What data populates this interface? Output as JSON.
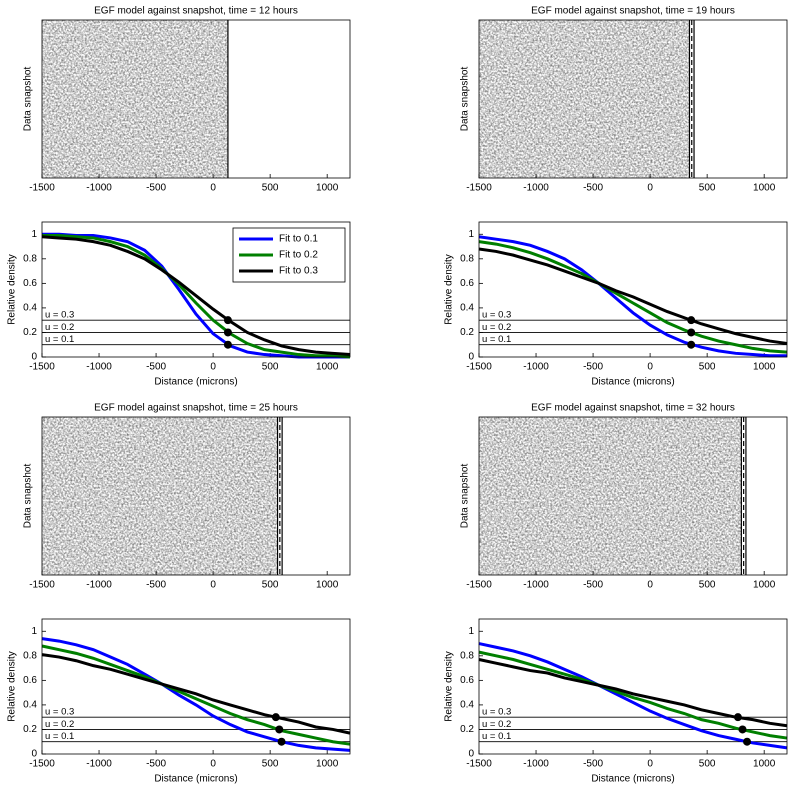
{
  "chart_data": [
    {
      "type": "image",
      "title": "EGF model against snapshot, time = 12 hours",
      "ylabel": "Data snapshot",
      "xlim": [
        -1500,
        1200
      ],
      "xticks": [
        -1500,
        -1000,
        -500,
        0,
        500,
        1000
      ],
      "fronts": [
        130
      ]
    },
    {
      "type": "line",
      "xlabel": "Distance (microns)",
      "ylabel": "Relative density",
      "xlim": [
        -1500,
        1200
      ],
      "ylim": [
        0,
        1.1
      ],
      "xticks": [
        -1500,
        -1000,
        -500,
        0,
        500,
        1000
      ],
      "yticks": [
        0,
        0.2,
        0.4,
        0.6,
        0.8,
        1
      ],
      "legend": "upper right",
      "x": [
        -1500,
        -1350,
        -1200,
        -1050,
        -900,
        -750,
        -600,
        -450,
        -300,
        -150,
        0,
        150,
        300,
        450,
        600,
        750,
        900,
        1050,
        1200
      ],
      "series": [
        {
          "name": "Fit to 0.1",
          "color": "#0000ff",
          "values": [
            1,
            1,
            0.99,
            0.99,
            0.97,
            0.94,
            0.87,
            0.74,
            0.55,
            0.35,
            0.19,
            0.09,
            0.04,
            0.02,
            0.01,
            0,
            0,
            0,
            0
          ],
          "marker": {
            "x": 130,
            "y": 0.1
          }
        },
        {
          "name": "Fit to 0.2",
          "color": "#007f00",
          "values": [
            0.99,
            0.99,
            0.98,
            0.97,
            0.94,
            0.9,
            0.83,
            0.72,
            0.59,
            0.44,
            0.3,
            0.19,
            0.11,
            0.06,
            0.04,
            0.02,
            0.01,
            0.01,
            0
          ],
          "marker": {
            "x": 130,
            "y": 0.2
          }
        },
        {
          "name": "Fit to 0.3",
          "color": "#000000",
          "values": [
            0.98,
            0.97,
            0.96,
            0.94,
            0.91,
            0.86,
            0.8,
            0.71,
            0.61,
            0.5,
            0.39,
            0.29,
            0.2,
            0.14,
            0.09,
            0.06,
            0.04,
            0.03,
            0.02
          ],
          "marker": {
            "x": 130,
            "y": 0.3
          }
        }
      ],
      "hlines": [
        {
          "value": 0.3,
          "label": "u = 0.3"
        },
        {
          "value": 0.2,
          "label": "u = 0.2"
        },
        {
          "value": 0.1,
          "label": "u = 0.1"
        }
      ]
    },
    {
      "type": "image",
      "title": "EGF model against snapshot, time = 19 hours",
      "ylabel": "Data snapshot",
      "xlim": [
        -1500,
        1200
      ],
      "xticks": [
        -1500,
        -1000,
        -500,
        0,
        500,
        1000
      ],
      "fronts": [
        345,
        365,
        385
      ]
    },
    {
      "type": "line",
      "xlabel": "Distance (microns)",
      "ylabel": "Relative density",
      "xlim": [
        -1500,
        1200
      ],
      "ylim": [
        0,
        1.1
      ],
      "xticks": [
        -1500,
        -1000,
        -500,
        0,
        500,
        1000
      ],
      "yticks": [
        0,
        0.2,
        0.4,
        0.6,
        0.8,
        1
      ],
      "x": [
        -1500,
        -1350,
        -1200,
        -1050,
        -900,
        -750,
        -600,
        -450,
        -300,
        -150,
        0,
        150,
        300,
        450,
        600,
        750,
        900,
        1050,
        1200
      ],
      "series": [
        {
          "color": "#0000ff",
          "values": [
            0.98,
            0.96,
            0.94,
            0.91,
            0.86,
            0.8,
            0.71,
            0.6,
            0.48,
            0.36,
            0.26,
            0.18,
            0.12,
            0.08,
            0.05,
            0.03,
            0.02,
            0.01,
            0.01
          ],
          "marker": {
            "x": 360,
            "y": 0.1
          }
        },
        {
          "color": "#007f00",
          "values": [
            0.94,
            0.92,
            0.89,
            0.85,
            0.8,
            0.74,
            0.68,
            0.6,
            0.52,
            0.44,
            0.36,
            0.28,
            0.22,
            0.17,
            0.13,
            0.1,
            0.07,
            0.05,
            0.04
          ],
          "marker": {
            "x": 360,
            "y": 0.2
          }
        },
        {
          "color": "#000000",
          "values": [
            0.88,
            0.86,
            0.83,
            0.79,
            0.75,
            0.7,
            0.65,
            0.6,
            0.54,
            0.49,
            0.43,
            0.37,
            0.32,
            0.27,
            0.23,
            0.19,
            0.16,
            0.13,
            0.11
          ],
          "marker": {
            "x": 360,
            "y": 0.3
          }
        }
      ],
      "hlines": [
        {
          "value": 0.3,
          "label": "u = 0.3"
        },
        {
          "value": 0.2,
          "label": "u = 0.2"
        },
        {
          "value": 0.1,
          "label": "u = 0.1"
        }
      ]
    },
    {
      "type": "image",
      "title": "EGF model against snapshot, time = 25 hours",
      "ylabel": "Data snapshot",
      "xlim": [
        -1500,
        1200
      ],
      "xticks": [
        -1500,
        -1000,
        -500,
        0,
        500,
        1000
      ],
      "fronts": [
        565,
        585,
        605
      ]
    },
    {
      "type": "line",
      "xlabel": "Distance (microns)",
      "ylabel": "Relative density",
      "xlim": [
        -1500,
        1200
      ],
      "ylim": [
        0,
        1.1
      ],
      "xticks": [
        -1500,
        -1000,
        -500,
        0,
        500,
        1000
      ],
      "yticks": [
        0,
        0.2,
        0.4,
        0.6,
        0.8,
        1
      ],
      "x": [
        -1500,
        -1350,
        -1200,
        -1050,
        -900,
        -750,
        -600,
        -450,
        -300,
        -150,
        0,
        150,
        300,
        450,
        600,
        750,
        900,
        1050,
        1200
      ],
      "series": [
        {
          "color": "#0000ff",
          "values": [
            0.94,
            0.92,
            0.89,
            0.85,
            0.79,
            0.73,
            0.65,
            0.57,
            0.48,
            0.4,
            0.31,
            0.24,
            0.18,
            0.14,
            0.1,
            0.07,
            0.05,
            0.04,
            0.03
          ],
          "marker": {
            "x": 600,
            "y": 0.1
          }
        },
        {
          "color": "#007f00",
          "values": [
            0.88,
            0.85,
            0.82,
            0.78,
            0.73,
            0.68,
            0.63,
            0.57,
            0.51,
            0.45,
            0.39,
            0.33,
            0.28,
            0.24,
            0.19,
            0.16,
            0.13,
            0.1,
            0.08
          ],
          "marker": {
            "x": 580,
            "y": 0.2
          }
        },
        {
          "color": "#000000",
          "values": [
            0.81,
            0.79,
            0.76,
            0.72,
            0.69,
            0.65,
            0.61,
            0.57,
            0.53,
            0.49,
            0.44,
            0.4,
            0.36,
            0.32,
            0.29,
            0.26,
            0.22,
            0.2,
            0.17
          ],
          "marker": {
            "x": 550,
            "y": 0.3
          }
        }
      ],
      "hlines": [
        {
          "value": 0.3,
          "label": "u = 0.3"
        },
        {
          "value": 0.2,
          "label": "u = 0.2"
        },
        {
          "value": 0.1,
          "label": "u = 0.1"
        }
      ]
    },
    {
      "type": "image",
      "title": "EGF model against snapshot, time = 32 hours",
      "ylabel": "Data snapshot",
      "xlim": [
        -1500,
        1200
      ],
      "xticks": [
        -1500,
        -1000,
        -500,
        0,
        500,
        1000
      ],
      "fronts": [
        800,
        820,
        840
      ]
    },
    {
      "type": "line",
      "xlabel": "Distance (microns)",
      "ylabel": "Relative density",
      "xlim": [
        -1500,
        1200
      ],
      "ylim": [
        0,
        1.1
      ],
      "xticks": [
        -1500,
        -1000,
        -500,
        0,
        500,
        1000
      ],
      "yticks": [
        0,
        0.2,
        0.4,
        0.6,
        0.8,
        1
      ],
      "x": [
        -1500,
        -1350,
        -1200,
        -1050,
        -900,
        -750,
        -600,
        -450,
        -300,
        -150,
        0,
        150,
        300,
        450,
        600,
        750,
        900,
        1050,
        1200
      ],
      "series": [
        {
          "color": "#0000ff",
          "values": [
            0.9,
            0.87,
            0.84,
            0.8,
            0.75,
            0.69,
            0.63,
            0.56,
            0.49,
            0.42,
            0.35,
            0.29,
            0.24,
            0.19,
            0.15,
            0.12,
            0.09,
            0.07,
            0.05
          ],
          "marker": {
            "x": 850,
            "y": 0.1
          }
        },
        {
          "color": "#007f00",
          "values": [
            0.83,
            0.8,
            0.77,
            0.73,
            0.69,
            0.65,
            0.61,
            0.56,
            0.51,
            0.46,
            0.42,
            0.37,
            0.33,
            0.28,
            0.25,
            0.21,
            0.18,
            0.15,
            0.13
          ],
          "marker": {
            "x": 810,
            "y": 0.2
          }
        },
        {
          "color": "#000000",
          "values": [
            0.77,
            0.74,
            0.71,
            0.68,
            0.66,
            0.62,
            0.59,
            0.56,
            0.53,
            0.49,
            0.46,
            0.43,
            0.4,
            0.36,
            0.33,
            0.3,
            0.28,
            0.25,
            0.23
          ],
          "marker": {
            "x": 770,
            "y": 0.3
          }
        }
      ],
      "hlines": [
        {
          "value": 0.3,
          "label": "u = 0.3"
        },
        {
          "value": 0.2,
          "label": "u = 0.2"
        },
        {
          "value": 0.1,
          "label": "u = 0.1"
        }
      ]
    }
  ]
}
